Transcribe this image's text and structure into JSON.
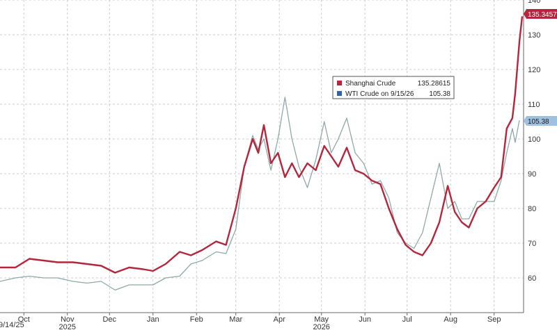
{
  "chart_data": {
    "type": "line",
    "x_start_label": "9/14/25",
    "x_ticks": [
      {
        "date": "2025-10-01",
        "label": "Oct"
      },
      {
        "date": "2025-11-01",
        "label": "Nov"
      },
      {
        "date": "2025-12-01",
        "label": "Dec"
      },
      {
        "date": "2026-01-01",
        "label": "Jan"
      },
      {
        "date": "2026-02-01",
        "label": "Feb"
      },
      {
        "date": "2026-03-01",
        "label": "Mar"
      },
      {
        "date": "2026-04-01",
        "label": "Apr"
      },
      {
        "date": "2026-05-01",
        "label": "May"
      },
      {
        "date": "2026-06-01",
        "label": "Jun"
      },
      {
        "date": "2026-07-01",
        "label": "Jul"
      },
      {
        "date": "2026-08-01",
        "label": "Aug"
      },
      {
        "date": "2026-09-01",
        "label": "Sep"
      }
    ],
    "year_labels": [
      {
        "date": "2025-11-01",
        "label": "2025"
      },
      {
        "date": "2026-05-01",
        "label": "2026"
      }
    ],
    "xlim": [
      "2025-09-14",
      "2026-09-22"
    ],
    "ylim": [
      50,
      140
    ],
    "y_ticks": [
      60,
      70,
      80,
      90,
      100,
      110,
      120,
      130,
      140
    ],
    "grid": true,
    "legend_position": "center-right",
    "series": [
      {
        "name": "Shanghai Crude",
        "color": "#b5253b",
        "last_value": "135.28615",
        "last_tag": "135.34576",
        "points": [
          [
            "2025-09-14",
            63
          ],
          [
            "2025-09-25",
            63
          ],
          [
            "2025-10-05",
            65.5
          ],
          [
            "2025-10-15",
            65
          ],
          [
            "2025-10-25",
            64.5
          ],
          [
            "2025-11-05",
            64.5
          ],
          [
            "2025-11-15",
            64
          ],
          [
            "2025-11-25",
            63.5
          ],
          [
            "2025-12-05",
            61.5
          ],
          [
            "2025-12-15",
            63
          ],
          [
            "2025-12-25",
            62.5
          ],
          [
            "2026-01-01",
            62
          ],
          [
            "2026-01-10",
            64
          ],
          [
            "2026-01-20",
            67.5
          ],
          [
            "2026-01-28",
            66.5
          ],
          [
            "2026-02-05",
            68
          ],
          [
            "2026-02-15",
            70.5
          ],
          [
            "2026-02-22",
            69.5
          ],
          [
            "2026-03-01",
            80
          ],
          [
            "2026-03-07",
            92
          ],
          [
            "2026-03-13",
            100
          ],
          [
            "2026-03-17",
            96
          ],
          [
            "2026-03-21",
            104
          ],
          [
            "2026-03-26",
            93
          ],
          [
            "2026-03-31",
            96
          ],
          [
            "2026-04-05",
            89
          ],
          [
            "2026-04-10",
            93
          ],
          [
            "2026-04-15",
            89
          ],
          [
            "2026-04-21",
            93
          ],
          [
            "2026-04-27",
            91
          ],
          [
            "2026-05-03",
            98
          ],
          [
            "2026-05-08",
            95
          ],
          [
            "2026-05-13",
            92
          ],
          [
            "2026-05-19",
            97.5
          ],
          [
            "2026-05-25",
            91
          ],
          [
            "2026-05-31",
            90
          ],
          [
            "2026-06-06",
            88
          ],
          [
            "2026-06-12",
            87
          ],
          [
            "2026-06-18",
            80
          ],
          [
            "2026-06-24",
            74
          ],
          [
            "2026-06-30",
            69.5
          ],
          [
            "2026-07-06",
            67.5
          ],
          [
            "2026-07-12",
            66.5
          ],
          [
            "2026-07-18",
            70
          ],
          [
            "2026-07-24",
            76
          ],
          [
            "2026-07-30",
            86.5
          ],
          [
            "2026-08-04",
            79
          ],
          [
            "2026-08-09",
            76
          ],
          [
            "2026-08-14",
            74.5
          ],
          [
            "2026-08-20",
            80
          ],
          [
            "2026-08-26",
            82
          ],
          [
            "2026-09-01",
            86
          ],
          [
            "2026-09-06",
            89
          ],
          [
            "2026-09-10",
            103
          ],
          [
            "2026-09-14",
            106
          ],
          [
            "2026-09-16",
            113
          ],
          [
            "2026-09-19",
            128
          ],
          [
            "2026-09-21",
            135.3
          ]
        ]
      },
      {
        "name": "WTI Crude on 9/15/26",
        "color": "#8fa8a8",
        "last_value": "105.38",
        "last_tag": "105.38",
        "points": [
          [
            "2025-09-14",
            59
          ],
          [
            "2025-09-25",
            60
          ],
          [
            "2025-10-05",
            60.5
          ],
          [
            "2025-10-15",
            60
          ],
          [
            "2025-10-25",
            60
          ],
          [
            "2025-11-05",
            59
          ],
          [
            "2025-11-15",
            58.5
          ],
          [
            "2025-11-25",
            59
          ],
          [
            "2025-12-05",
            56.5
          ],
          [
            "2025-12-15",
            58
          ],
          [
            "2025-12-25",
            58
          ],
          [
            "2026-01-01",
            58
          ],
          [
            "2026-01-10",
            60
          ],
          [
            "2026-01-20",
            60.5
          ],
          [
            "2026-01-28",
            64
          ],
          [
            "2026-02-05",
            65
          ],
          [
            "2026-02-15",
            67.5
          ],
          [
            "2026-02-22",
            67
          ],
          [
            "2026-03-01",
            74
          ],
          [
            "2026-03-07",
            92
          ],
          [
            "2026-03-13",
            101
          ],
          [
            "2026-03-17",
            97
          ],
          [
            "2026-03-21",
            100
          ],
          [
            "2026-03-26",
            91
          ],
          [
            "2026-03-31",
            100
          ],
          [
            "2026-04-05",
            112
          ],
          [
            "2026-04-10",
            100
          ],
          [
            "2026-04-15",
            92
          ],
          [
            "2026-04-21",
            86
          ],
          [
            "2026-04-27",
            94
          ],
          [
            "2026-05-03",
            105
          ],
          [
            "2026-05-08",
            96
          ],
          [
            "2026-05-13",
            100
          ],
          [
            "2026-05-19",
            106
          ],
          [
            "2026-05-25",
            96
          ],
          [
            "2026-05-31",
            93
          ],
          [
            "2026-06-06",
            87
          ],
          [
            "2026-06-12",
            88
          ],
          [
            "2026-06-18",
            83
          ],
          [
            "2026-06-24",
            73
          ],
          [
            "2026-06-30",
            70
          ],
          [
            "2026-07-06",
            68.5
          ],
          [
            "2026-07-12",
            73
          ],
          [
            "2026-07-18",
            83
          ],
          [
            "2026-07-24",
            93
          ],
          [
            "2026-07-30",
            80
          ],
          [
            "2026-08-04",
            82
          ],
          [
            "2026-08-09",
            77
          ],
          [
            "2026-08-14",
            77
          ],
          [
            "2026-08-20",
            82
          ],
          [
            "2026-08-26",
            82
          ],
          [
            "2026-09-01",
            82
          ],
          [
            "2026-09-06",
            88
          ],
          [
            "2026-09-10",
            96
          ],
          [
            "2026-09-14",
            103
          ],
          [
            "2026-09-16",
            99
          ],
          [
            "2026-09-19",
            105.38
          ]
        ]
      }
    ]
  }
}
